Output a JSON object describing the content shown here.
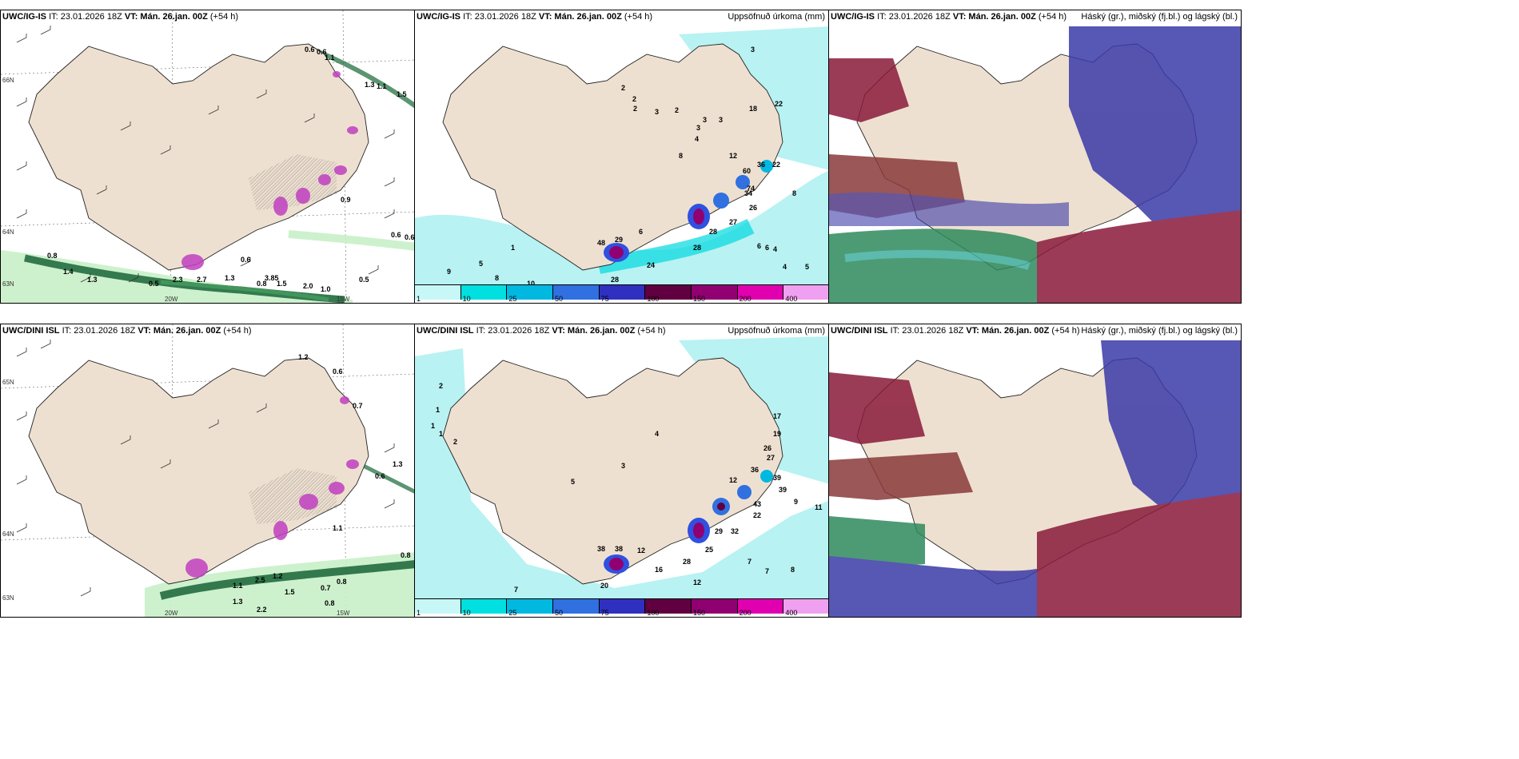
{
  "colors": {
    "land": "#eee0d0",
    "sea": "#ffffff",
    "precip_light": "#b8f2f2",
    "magenta": "#c040c0",
    "green_dark": "#1d6b3a",
    "green_light": "#bff0bf",
    "hatch": "#888888",
    "high_cloud": "#2e8a5c",
    "mid_cloud": "#3a3aa8",
    "low_cloud": "#8a1a3a"
  },
  "rows": [
    {
      "model": "UWC/IG-IS",
      "it": "IT: 23.01.2026 18Z",
      "vt_label": "VT:",
      "vt": "Mán. 26.jan. 00Z",
      "lead": "(+54 h)",
      "precip_title": "Uppsöfnuð úrkoma (mm)",
      "cloud_title": "Háský (gr.), miðský (fj.bl.) og lágský (bl.)"
    },
    {
      "model": "UWC/DINI ISL",
      "it": "IT: 23.01.2026 18Z",
      "vt_label": "VT:",
      "vt": "Mán. 26.jan. 00Z",
      "lead": "(+54 h)",
      "precip_title": "Uppsöfnuð úrkoma (mm)",
      "cloud_title": "Háský (gr.), miðský (fj.bl.) og lágský (bl.)"
    }
  ],
  "axis_labels": {
    "lat66": "66N",
    "lat64": "64N",
    "lat65": "65N",
    "lat63": "63N",
    "lon20": "20W",
    "lon15": "15W"
  },
  "colorbar": {
    "ticks": [
      "1",
      "10",
      "25",
      "50",
      "75",
      "100",
      "150",
      "200",
      "400"
    ],
    "colors": [
      "#c8f7f7",
      "#00e0e0",
      "#00b8e0",
      "#3070e0",
      "#3030c0",
      "#600040",
      "#900070",
      "#e000b0",
      "#f0a0f0"
    ]
  },
  "wind_panel_values_top": [
    "0.6",
    "0.6",
    "1.1",
    "1.3",
    "1.1",
    "1.5",
    "0.9",
    "0.6",
    "0.6",
    "0.8",
    "1.4",
    "1.3",
    "0.5",
    "2.3",
    "2.7",
    "1.3",
    "0.6",
    "0.8",
    "3.85",
    "1.5",
    "2.0",
    "1.0",
    "0.5"
  ],
  "wind_panel_values_bottom": [
    "1.2",
    "0.6",
    "0.7",
    "1.3",
    "0.6",
    "1.1",
    "0.8",
    "2.5",
    "1.1",
    "1.2",
    "0.7",
    "0.8",
    "1.5",
    "1.3",
    "2.2",
    "0.8"
  ],
  "precip_values_top": [
    "2",
    "2",
    "2",
    "3",
    "3",
    "3",
    "3",
    "4",
    "18",
    "22",
    "3",
    "2",
    "8",
    "12",
    "36",
    "22",
    "60",
    "74",
    "34",
    "8",
    "26",
    "27",
    "28",
    "28",
    "29",
    "48",
    "24",
    "28",
    "1",
    "5",
    "9",
    "8",
    "10",
    "6",
    "6",
    "6",
    "4",
    "4",
    "5"
  ],
  "precip_values_bottom": [
    "2",
    "1",
    "1",
    "1",
    "2",
    "5",
    "3",
    "4",
    "12",
    "36",
    "39",
    "39",
    "43",
    "22",
    "29",
    "32",
    "25",
    "38",
    "38",
    "12",
    "16",
    "28",
    "20",
    "12",
    "7",
    "7",
    "7",
    "8",
    "9",
    "11",
    "17",
    "19",
    "26",
    "27"
  ]
}
